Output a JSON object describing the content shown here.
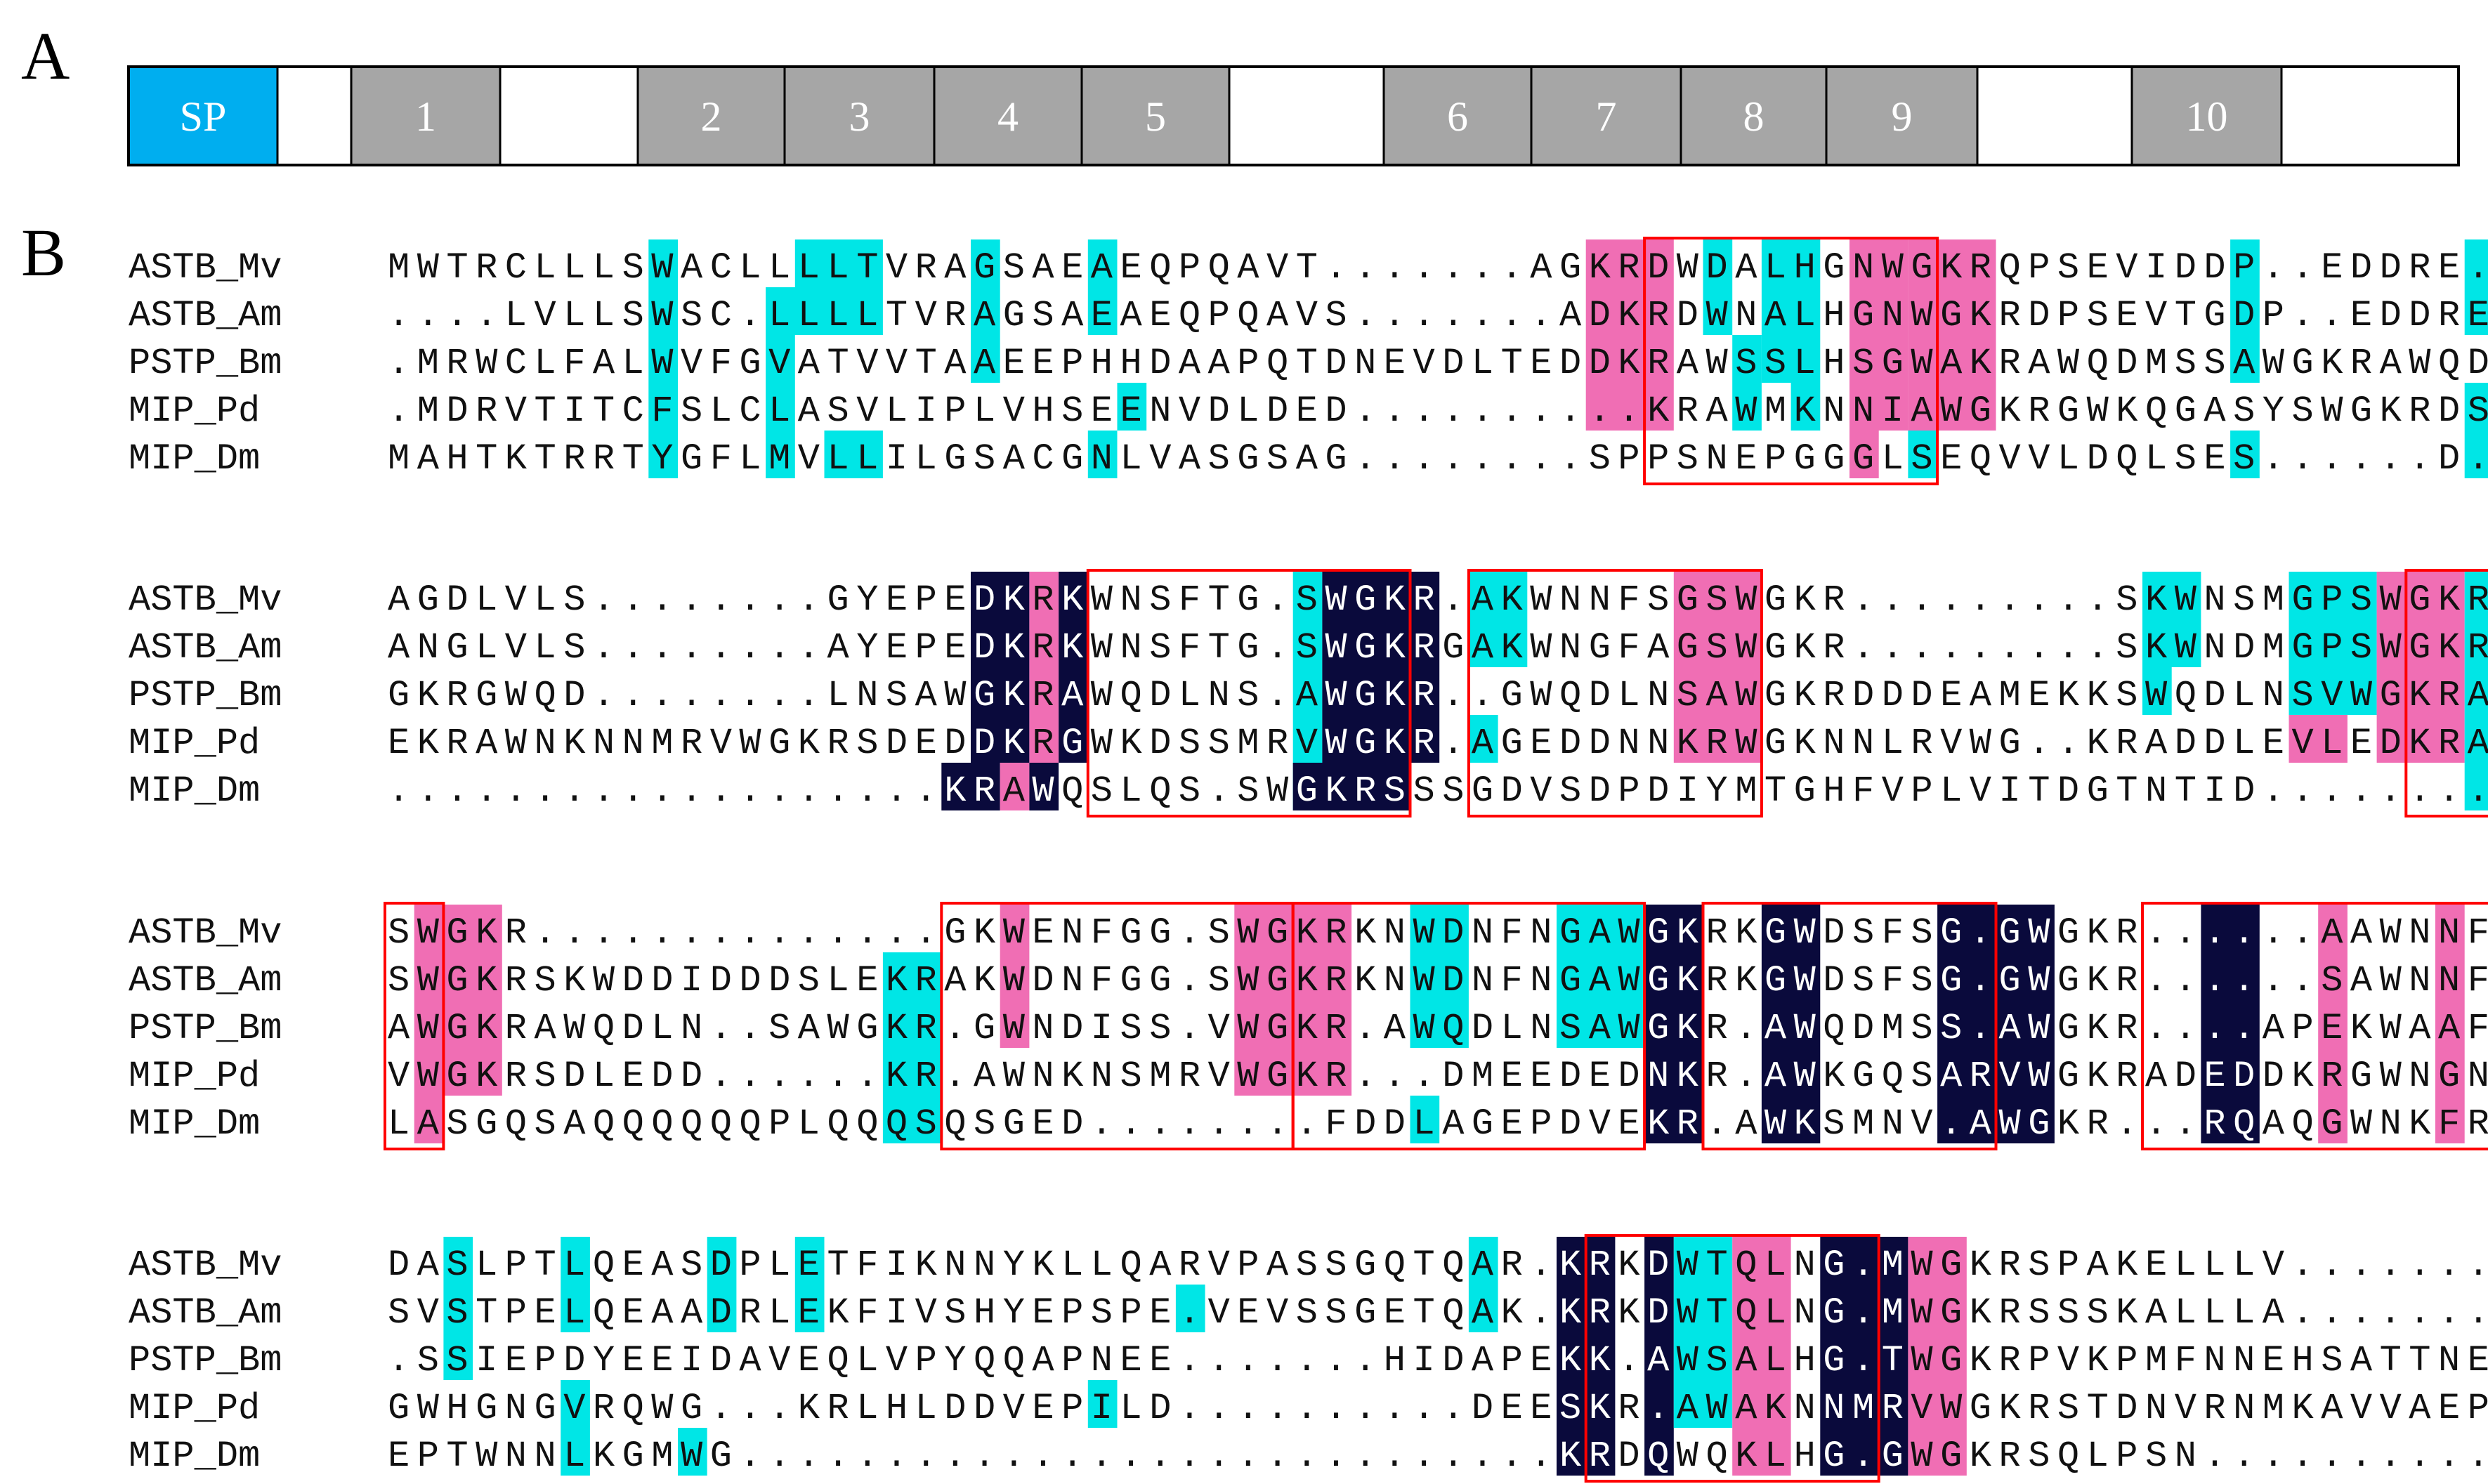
{
  "panels": {
    "a": "A",
    "b": "B"
  },
  "colors": {
    "sp": "#00aeef",
    "motif": "#a6a6a6",
    "white": "#ffffff",
    "outline": "#000000",
    "identical": "#0a0a3c",
    "conserved": "#f06eb4",
    "similar": "#00e6e6",
    "box": "#ff0000"
  },
  "domain_map": {
    "segments": [
      {
        "label": "SP",
        "kind": "sp"
      },
      {
        "label": "",
        "kind": "gap"
      },
      {
        "label": "1",
        "kind": "motif"
      },
      {
        "label": "",
        "kind": "gap"
      },
      {
        "label": "2",
        "kind": "motif"
      },
      {
        "label": "3",
        "kind": "motif"
      },
      {
        "label": "4",
        "kind": "motif"
      },
      {
        "label": "5",
        "kind": "motif"
      },
      {
        "label": "",
        "kind": "gap"
      },
      {
        "label": "6",
        "kind": "motif"
      },
      {
        "label": "7",
        "kind": "motif"
      },
      {
        "label": "8",
        "kind": "motif"
      },
      {
        "label": "9",
        "kind": "motif"
      },
      {
        "label": "",
        "kind": "gap"
      },
      {
        "label": "10",
        "kind": "motif"
      },
      {
        "label": "",
        "kind": "gap"
      }
    ]
  },
  "alignment": {
    "blocks": [
      {
        "rows": [
          {
            "name": "ASTB_Mv",
            "seq": "MWTRCLLLSWACLLLLTVRAGSAEAEQPQAVT.......AGKRDWDALHGNWGKRQPSEVIDDP..EDDRE...LMREV"
          },
          {
            "name": "ASTB_Am",
            "seq": "....LVLLSWSC.LLLLTVRAGSAEAEQPQAVS.......ADKRDWNALHGNWGKRDPSEVTGDP..EDDRE...LMREV"
          },
          {
            "name": "PSTP_Bm",
            "seq": ".MRWCLFALWVFGVATVVTAAEEPHHDAAPQTDNEVDLTEDDKRAWSSLHSGWAKRAWQDMSSAWGKRAWQD...INSAW"
          },
          {
            "name": "MIP_Pd",
            "seq": ".MDRVTITCFSLCLASVLIPLVHSEENVDLDED..........KRAWMKNNIAWGKRGWKQGASYSWGKRDSEGDGLMSDE"
          },
          {
            "name": "MIP_Dm",
            "seq": "MAHTKTRRTYGFLMVLLILGSACGNLVASGSAG........SPPSNEPGGGLSEQVVLDQLSES......D...LYGNN"
          }
        ]
      },
      {
        "rows": [
          {
            "name": "ASTB_Mv",
            "seq": "AGDLVLS........GYEPEDKRKWNSFTG.SWGKR.AKWNNFSGSWGKR.........SKWNSMGPSWGKRAKW.DNFGG"
          },
          {
            "name": "ASTB_Am",
            "seq": "ANGLVLS........AYEPEDKRKWNSFTG.SWGKRGAKWNGFAGSWGKR.........SKWNDMGPSWGKRAKW.ENFGG"
          },
          {
            "name": "PSTP_Bm",
            "seq": "GKRGWQD........LNSAWGKRAWQDLNS.AWGKR..GWQDLNSAWGKRDDDEAMEKKSWQDLNSVWGKRA.W.QDLNS"
          },
          {
            "name": "MIP_Pd",
            "seq": "EKRAWNKNNMRVWGKRSDEDDKRGWKDSSMRVWGKR.AGEDDNNKRWGKNNLRVWG..KRADDLEVLEDKRA.WGDNNMR"
          },
          {
            "name": "MIP_Dm",
            "seq": "...................KRAWQSLQS.SWGKRSSSGDVSDPDIYMTGHFVPLVITDGTNTID........WDTFER"
          }
        ]
      },
      {
        "rows": [
          {
            "name": "ASTB_Mv",
            "seq": "SWGKR..............GKWENFGG.SWGKRKNWDNFNGAWGKRKGWDSFSG.GWGKR......AAWNNFGG.SWGKR"
          },
          {
            "name": "ASTB_Am",
            "seq": "SWGKRSKWDDIDDDSLEKRAKWDNFGG.SWGKRKNWDNFNGAWGKRKGWDSFSG.GWGKR......SAWNNFGG.SWGKR"
          },
          {
            "name": "PSTP_Bm",
            "seq": "AWGKRAWQDLN..SAWGKR.GWNDISS.VWGKR.AWQDLNSAWGKR.AWQDMSS.AWGKR....APEKWAAFHG.SWGKR"
          },
          {
            "name": "MIP_Pd",
            "seq": "VWGKRSDLEDD......KR.AWNKNSMRVWGKR...DMEEDEDNKR.AWKGQSARVWGKRADEDDKRGWNGNSMRVWGKR"
          },
          {
            "name": "MIP_Dm",
            "seq": "LASGQSAQQQQQQPLQQQSQSGED........FDDLAGEPDVEKR.AWKSMNV.AWGKR...RQAQGWNKFRG.AWGKR"
          }
        ]
      },
      {
        "rows": [
          {
            "name": "ASTB_Mv",
            "seq": "DASLPTLQEASDPLETFIKNNYKLLQARVPASSGQTQAR.KRKDWTQLNG.MWGKRSPAKELLLV..............."
          },
          {
            "name": "ASTB_Am",
            "seq": "SVSTPELQEAADRLEKFIVSHYEPSPE.VEVSSGETQAK.KRKDWTQLNG.MWGKRSSSKALLLA..............."
          },
          {
            "name": "PSTP_Bm",
            "seq": ".SSIEPDYEEIDAVEQLVPYQQAPNEE.......HIDAPEKK.AWSALHG.TWGKRPVKPMFNNEHSATTNEA......."
          },
          {
            "name": "MIP_Pd",
            "seq": "GWHGNGVRQWG...KRLHLDDVEPILD..........DEESKR.AWAKNNMRVWGKRSTDNVRNMKAVVAEPAEVAADAES"
          },
          {
            "name": "MIP_Dm",
            "seq": "EPTWNNLKGMWG............................KRDQWQKLHG.GWGKRSQLPSN..............."
          }
        ]
      }
    ]
  }
}
